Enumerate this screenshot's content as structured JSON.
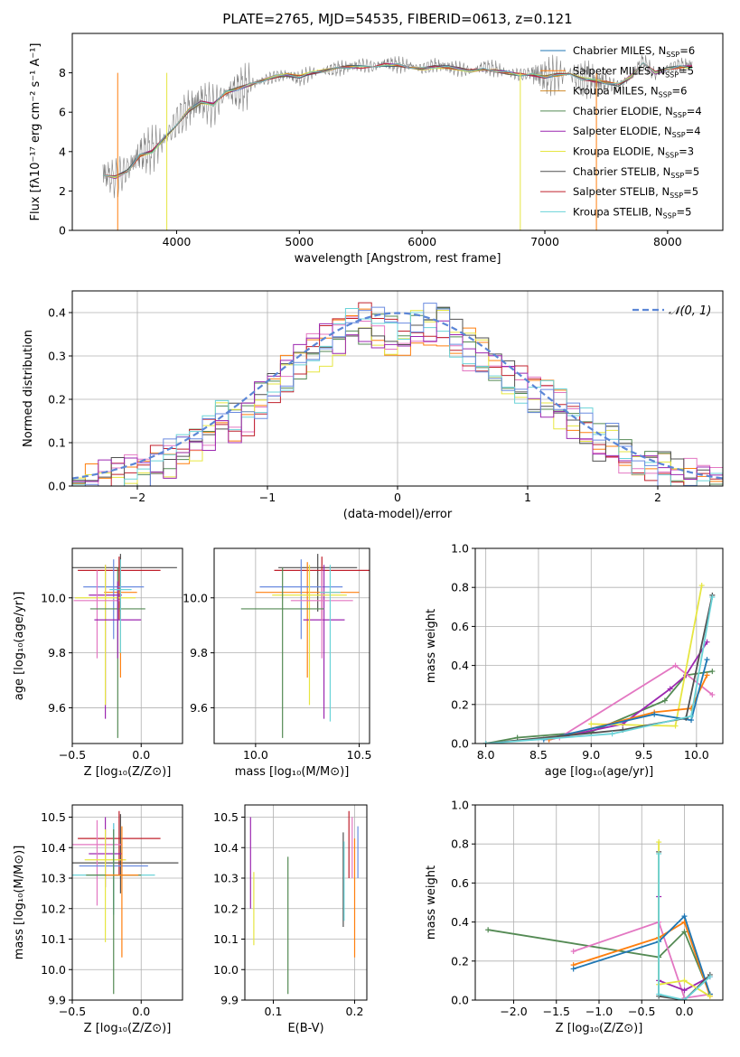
{
  "figure": {
    "title": "PLATE=2765, MJD=54535, FIBERID=0613, z=0.121"
  },
  "colors": {
    "series": [
      "#1f77b4",
      "#ff7f0e",
      "#d08b2b",
      "#548a54",
      "#9c27b0",
      "#e6e641",
      "#505050",
      "#c0202c",
      "#6ad3d8",
      "#e377c2",
      "#6a8be0",
      "#b9b9b9"
    ],
    "gaussian": "#5b86d6"
  },
  "chart_data": [
    {
      "id": "spectrum",
      "type": "line",
      "xlabel": "wavelength [Angstrom, rest frame]",
      "ylabel": "Flux [fλ10⁻¹⁷ erg cm⁻² s⁻¹ A⁻¹]",
      "xlim": [
        3150,
        8450
      ],
      "ylim": [
        0,
        10
      ],
      "xticks": [
        4000,
        5000,
        6000,
        7000,
        8000
      ],
      "yticks": [
        0,
        2,
        4,
        6,
        8
      ],
      "grid": false,
      "legend": "right",
      "x": [
        3400,
        3500,
        3600,
        3700,
        3800,
        3900,
        4000,
        4100,
        4200,
        4300,
        4400,
        4500,
        4600,
        4700,
        4800,
        4900,
        5000,
        5100,
        5200,
        5300,
        5400,
        5500,
        5600,
        5700,
        5800,
        5900,
        6000,
        6100,
        6200,
        6300,
        6400,
        6500,
        6600,
        6700,
        6800,
        6900,
        7000,
        7100,
        7200,
        7300,
        7400,
        7500,
        7600,
        7700,
        7800,
        7900,
        8000,
        8100,
        8200
      ],
      "observed": [
        2.9,
        2.6,
        3.1,
        3.9,
        4.1,
        4.6,
        5.5,
        6.2,
        6.6,
        6.3,
        7.0,
        7.1,
        7.4,
        7.6,
        7.8,
        7.9,
        7.7,
        8.0,
        8.1,
        8.2,
        8.3,
        8.4,
        8.3,
        8.5,
        8.4,
        8.4,
        8.2,
        8.4,
        8.3,
        8.2,
        8.1,
        8.3,
        8.2,
        8.0,
        7.9,
        8.0,
        7.8,
        7.9,
        8.0,
        7.7,
        7.6,
        7.5,
        7.3,
        7.8,
        8.6,
        7.9,
        8.2,
        8.4,
        8.4
      ],
      "model": [
        2.8,
        2.7,
        3.0,
        3.8,
        4.0,
        4.7,
        5.4,
        6.1,
        6.5,
        6.4,
        7.0,
        7.2,
        7.4,
        7.6,
        7.8,
        7.9,
        7.8,
        8.0,
        8.1,
        8.2,
        8.3,
        8.3,
        8.3,
        8.4,
        8.4,
        8.3,
        8.2,
        8.3,
        8.3,
        8.2,
        8.1,
        8.2,
        8.1,
        8.0,
        7.9,
        7.9,
        7.8,
        7.9,
        7.9,
        7.7,
        7.6,
        7.5,
        7.4,
        7.8,
        8.5,
        8.0,
        8.2,
        8.3,
        8.3
      ],
      "legend_entries": [
        {
          "name": "Chabrier MILES, N_SSP=6",
          "base": "Chabrier MILES, N",
          "sub": "SSP",
          "tail": "=6",
          "color": "#1f77b4"
        },
        {
          "name": "Salpeter MILES, N_SSP=5",
          "base": "Salpeter MILES, N",
          "sub": "SSP",
          "tail": "=5",
          "color": "#ff7f0e"
        },
        {
          "name": "Kroupa MILES, N_SSP=6",
          "base": "Kroupa MILES, N",
          "sub": "SSP",
          "tail": "=6",
          "color": "#d08b2b"
        },
        {
          "name": "Chabrier ELODIE, N_SSP=4",
          "base": "Chabrier ELODIE, N",
          "sub": "SSP",
          "tail": "=4",
          "color": "#548a54"
        },
        {
          "name": "Salpeter ELODIE, N_SSP=4",
          "base": "Salpeter ELODIE, N",
          "sub": "SSP",
          "tail": "=4",
          "color": "#9c27b0"
        },
        {
          "name": "Kroupa ELODIE, N_SSP=3",
          "base": "Kroupa ELODIE, N",
          "sub": "SSP",
          "tail": "=3",
          "color": "#e6e641"
        },
        {
          "name": "Chabrier STELIB, N_SSP=5",
          "base": "Chabrier STELIB, N",
          "sub": "SSP",
          "tail": "=5",
          "color": "#505050"
        },
        {
          "name": "Salpeter STELIB, N_SSP=5",
          "base": "Salpeter STELIB, N",
          "sub": "SSP",
          "tail": "=5",
          "color": "#c0202c"
        },
        {
          "name": "Kroupa STELIB, N_SSP=5",
          "base": "Kroupa STELIB, N",
          "sub": "SSP",
          "tail": "=5",
          "color": "#6ad3d8"
        }
      ]
    },
    {
      "id": "residuals",
      "type": "line",
      "xlabel": "(data-model)/error",
      "ylabel": "Normed distribution",
      "xlim": [
        -2.5,
        2.5
      ],
      "ylim": [
        0,
        0.45
      ],
      "xticks": [
        -2,
        -1,
        0,
        1,
        2
      ],
      "yticks": [
        0.0,
        0.1,
        0.2,
        0.3,
        0.4
      ],
      "grid": true,
      "legend": "top-right",
      "gaussian_label": "𝒩(0, 1)",
      "bin_edges": [
        -2.5,
        -2.4,
        -2.3,
        -2.2,
        -2.1,
        -2.0,
        -1.9,
        -1.8,
        -1.7,
        -1.6,
        -1.5,
        -1.4,
        -1.3,
        -1.2,
        -1.1,
        -1.0,
        -0.9,
        -0.8,
        -0.7,
        -0.6,
        -0.5,
        -0.4,
        -0.3,
        -0.2,
        -0.1,
        0.0,
        0.1,
        0.2,
        0.3,
        0.4,
        0.5,
        0.6,
        0.7,
        0.8,
        0.9,
        1.0,
        1.1,
        1.2,
        1.3,
        1.4,
        1.5,
        1.6,
        1.7,
        1.8,
        1.9,
        2.0,
        2.1,
        2.2,
        2.3,
        2.4,
        2.5
      ],
      "histogram": [
        0.03,
        0.03,
        0.04,
        0.05,
        0.05,
        0.06,
        0.07,
        0.09,
        0.11,
        0.13,
        0.15,
        0.18,
        0.17,
        0.19,
        0.22,
        0.25,
        0.28,
        0.31,
        0.33,
        0.35,
        0.37,
        0.39,
        0.4,
        0.39,
        0.37,
        0.36,
        0.38,
        0.4,
        0.39,
        0.36,
        0.34,
        0.32,
        0.3,
        0.28,
        0.26,
        0.24,
        0.22,
        0.2,
        0.18,
        0.16,
        0.13,
        0.12,
        0.1,
        0.09,
        0.08,
        0.06,
        0.05,
        0.04,
        0.04,
        0.03
      ]
    },
    {
      "id": "age-vs-Z",
      "type": "scatter",
      "xlabel": "Z [log₁₀(Z/Z⊙)]",
      "ylabel": "age  [log₁₀(age/yr)]",
      "xlim": [
        -0.5,
        0.3
      ],
      "ylim": [
        9.47,
        10.18
      ],
      "xticks": [
        -0.5,
        0.0
      ],
      "yticks": [
        9.6,
        9.8,
        10.0
      ],
      "xticklabels": [
        "−0.5",
        "0.0"
      ],
      "grid": true,
      "points": [
        {
          "x": -0.15,
          "y": 10.11,
          "xerr": 0.41,
          "ylo": 9.95,
          "yhi": 10.16,
          "color": "#505050"
        },
        {
          "x": -0.16,
          "y": 10.1,
          "xerr": 0.3,
          "ylo": 9.92,
          "yhi": 10.15,
          "color": "#c0202c"
        },
        {
          "x": -0.15,
          "y": 10.02,
          "xerr": 0.12,
          "ylo": 9.71,
          "yhi": 10.13,
          "color": "#ff7f0e"
        },
        {
          "x": -0.2,
          "y": 10.04,
          "xerr": 0.22,
          "ylo": 9.85,
          "yhi": 10.14,
          "color": "#6a8be0"
        },
        {
          "x": -0.26,
          "y": 10.01,
          "xerr": 0.12,
          "ylo": 9.56,
          "yhi": 10.12,
          "color": "#9c27b0"
        },
        {
          "x": -0.26,
          "y": 10.0,
          "xerr": 0.22,
          "ylo": 9.61,
          "yhi": 10.12,
          "color": "#e6e641"
        },
        {
          "x": -0.32,
          "y": 9.99,
          "xerr": 0.17,
          "ylo": 9.78,
          "yhi": 10.1,
          "color": "#e377c2"
        },
        {
          "x": -0.17,
          "y": 9.96,
          "xerr": 0.2,
          "ylo": 9.49,
          "yhi": 10.11,
          "color": "#548a54"
        },
        {
          "x": -0.17,
          "y": 9.92,
          "xerr": 0.17,
          "ylo": 9.78,
          "yhi": 10.06,
          "color": "#9c27b0"
        },
        {
          "x": -0.15,
          "y": 10.03,
          "xerr": 0.08,
          "ylo": 9.8,
          "yhi": 10.14,
          "color": "#6ad3d8"
        }
      ]
    },
    {
      "id": "age-vs-mass",
      "type": "scatter",
      "xlabel": "mass [log₁₀(M/M⊙)]",
      "ylabel": "",
      "xlim": [
        9.8,
        10.55
      ],
      "ylim": [
        9.47,
        10.18
      ],
      "xticks": [
        10.0,
        10.5
      ],
      "yticks": [
        9.6,
        9.8,
        10.0
      ],
      "grid": true,
      "points": [
        {
          "x": 10.3,
          "y": 10.11,
          "xerr": 0.19,
          "ylo": 9.95,
          "yhi": 10.16,
          "color": "#505050"
        },
        {
          "x": 10.32,
          "y": 10.1,
          "xerr": 0.23,
          "ylo": 9.92,
          "yhi": 10.15,
          "color": "#c0202c"
        },
        {
          "x": 10.25,
          "y": 10.02,
          "xerr": 0.25,
          "ylo": 9.71,
          "yhi": 10.13,
          "color": "#ff7f0e"
        },
        {
          "x": 10.22,
          "y": 10.04,
          "xerr": 0.2,
          "ylo": 9.85,
          "yhi": 10.14,
          "color": "#6a8be0"
        },
        {
          "x": 10.33,
          "y": 9.92,
          "xerr": 0.1,
          "ylo": 9.56,
          "yhi": 10.12,
          "color": "#9c27b0"
        },
        {
          "x": 10.26,
          "y": 10.01,
          "xerr": 0.18,
          "ylo": 9.61,
          "yhi": 10.12,
          "color": "#e6e641"
        },
        {
          "x": 10.32,
          "y": 9.99,
          "xerr": 0.15,
          "ylo": 9.78,
          "yhi": 10.1,
          "color": "#e377c2"
        },
        {
          "x": 10.13,
          "y": 9.96,
          "xerr": 0.2,
          "ylo": 9.49,
          "yhi": 10.11,
          "color": "#548a54"
        },
        {
          "x": 10.36,
          "y": 10.02,
          "xerr": 0.05,
          "ylo": 9.55,
          "yhi": 10.12,
          "color": "#6ad3d8"
        }
      ]
    },
    {
      "id": "mass-weight-vs-age",
      "type": "line",
      "xlabel": "age  [log₁₀(age/yr)]",
      "ylabel": "mass weight",
      "xlim": [
        7.9,
        10.25
      ],
      "ylim": [
        0,
        1.0
      ],
      "xticks": [
        8.0,
        8.5,
        9.0,
        9.5,
        10.0
      ],
      "yticks": [
        0.0,
        0.2,
        0.4,
        0.6,
        0.8,
        1.0
      ],
      "grid": true,
      "series": [
        {
          "color": "#548a54",
          "x": [
            8.0,
            8.3,
            9.0,
            9.7,
            9.9,
            10.15
          ],
          "y": [
            0.0,
            0.03,
            0.06,
            0.22,
            0.35,
            0.37
          ]
        },
        {
          "color": "#9c27b0",
          "x": [
            8.6,
            9.3,
            9.75,
            9.9,
            10.1
          ],
          "y": [
            0.02,
            0.1,
            0.28,
            0.35,
            0.52
          ]
        },
        {
          "color": "#e377c2",
          "x": [
            8.7,
            9.8,
            10.15
          ],
          "y": [
            0.03,
            0.4,
            0.25
          ]
        },
        {
          "color": "#e6e641",
          "x": [
            9.0,
            9.8,
            10.05
          ],
          "y": [
            0.1,
            0.09,
            0.81
          ]
        },
        {
          "color": "#ff7f0e",
          "x": [
            8.6,
            9.6,
            9.95,
            10.1
          ],
          "y": [
            0.02,
            0.16,
            0.18,
            0.35
          ]
        },
        {
          "color": "#1f77b4",
          "x": [
            8.55,
            9.6,
            9.95,
            10.1
          ],
          "y": [
            0.02,
            0.15,
            0.12,
            0.43
          ]
        },
        {
          "color": "#505050",
          "x": [
            8.0,
            9.3,
            9.9,
            10.15
          ],
          "y": [
            0.0,
            0.07,
            0.13,
            0.76
          ]
        },
        {
          "color": "#6ad3d8",
          "x": [
            8.0,
            9.2,
            9.95,
            10.15
          ],
          "y": [
            0.0,
            0.05,
            0.14,
            0.75
          ]
        }
      ]
    },
    {
      "id": "mass-vs-Z",
      "type": "scatter",
      "xlabel": "Z [log₁₀(Z/Z⊙)]",
      "ylabel": "mass [log₁₀(M/M⊙)]",
      "xlim": [
        -0.5,
        0.3
      ],
      "ylim": [
        9.9,
        10.54
      ],
      "xticks": [
        -0.5,
        0.0
      ],
      "yticks": [
        9.9,
        10.0,
        10.1,
        10.2,
        10.3,
        10.4,
        10.5
      ],
      "xticklabels": [
        "−0.5",
        "0.0"
      ],
      "grid": true,
      "points": [
        {
          "x": -0.16,
          "y": 10.43,
          "xerr": 0.3,
          "ylo": 10.31,
          "yhi": 10.52,
          "color": "#c0202c"
        },
        {
          "x": -0.15,
          "y": 10.35,
          "xerr": 0.42,
          "ylo": 10.25,
          "yhi": 10.51,
          "color": "#505050"
        },
        {
          "x": -0.26,
          "y": 10.38,
          "xerr": 0.12,
          "ylo": 10.27,
          "yhi": 10.5,
          "color": "#9c27b0"
        },
        {
          "x": -0.32,
          "y": 10.41,
          "xerr": 0.18,
          "ylo": 10.21,
          "yhi": 10.49,
          "color": "#e377c2"
        },
        {
          "x": -0.2,
          "y": 10.34,
          "xerr": 0.25,
          "ylo": 10.2,
          "yhi": 10.48,
          "color": "#6a8be0"
        },
        {
          "x": -0.2,
          "y": 10.31,
          "xerr": 0.3,
          "ylo": 10.18,
          "yhi": 10.48,
          "color": "#6ad3d8"
        },
        {
          "x": -0.26,
          "y": 10.36,
          "xerr": 0.15,
          "ylo": 10.09,
          "yhi": 10.46,
          "color": "#e6e641"
        },
        {
          "x": -0.2,
          "y": 10.31,
          "xerr": 0.2,
          "ylo": 9.92,
          "yhi": 10.46,
          "color": "#548a54"
        },
        {
          "x": -0.14,
          "y": 10.31,
          "xerr": 0.12,
          "ylo": 10.04,
          "yhi": 10.47,
          "color": "#ff7f0e"
        }
      ]
    },
    {
      "id": "mass-vs-EBV",
      "type": "scatter",
      "xlabel": "E(B-V)",
      "ylabel": "",
      "xlim": [
        0.065,
        0.215
      ],
      "ylim": [
        9.9,
        10.54
      ],
      "xticks": [
        0.1,
        0.2
      ],
      "yticks": [
        9.9,
        10.0,
        10.1,
        10.2,
        10.3,
        10.4,
        10.5
      ],
      "grid": true,
      "points": [
        {
          "x": 0.072,
          "ylo": 10.2,
          "yhi": 10.5,
          "color": "#9c27b0"
        },
        {
          "x": 0.076,
          "ylo": 10.08,
          "yhi": 10.32,
          "color": "#e6e641"
        },
        {
          "x": 0.118,
          "ylo": 9.92,
          "yhi": 10.37,
          "color": "#548a54"
        },
        {
          "x": 0.186,
          "ylo": 10.14,
          "yhi": 10.45,
          "color": "#505050"
        },
        {
          "x": 0.187,
          "ylo": 10.16,
          "yhi": 10.42,
          "color": "#6ad3d8"
        },
        {
          "x": 0.193,
          "ylo": 10.3,
          "yhi": 10.52,
          "color": "#c0202c"
        },
        {
          "x": 0.197,
          "ylo": 10.3,
          "yhi": 10.5,
          "color": "#e377c2"
        },
        {
          "x": 0.2,
          "ylo": 10.04,
          "yhi": 10.43,
          "color": "#ff7f0e"
        },
        {
          "x": 0.204,
          "ylo": 10.3,
          "yhi": 10.47,
          "color": "#6a8be0"
        }
      ]
    },
    {
      "id": "mass-weight-vs-Z",
      "type": "line",
      "xlabel": "Z [log₁₀(Z/Z⊙)]",
      "ylabel": "mass weight",
      "xlim": [
        -2.45,
        0.45
      ],
      "ylim": [
        0,
        1.0
      ],
      "xticks": [
        -2.0,
        -1.5,
        -1.0,
        -0.5,
        0.0
      ],
      "yticks": [
        0.0,
        0.2,
        0.4,
        0.6,
        0.8,
        1.0
      ],
      "xticklabels": [
        "−2.0",
        "−1.5",
        "−1.0",
        "−0.5",
        "0.0"
      ],
      "grid": true,
      "series": [
        {
          "color": "#548a54",
          "x": [
            -2.3,
            -0.3,
            0.0,
            0.3
          ],
          "y": [
            0.36,
            0.22,
            0.35,
            0.03
          ]
        },
        {
          "color": "#e377c2",
          "x": [
            -1.3,
            -0.3,
            0.0,
            0.3
          ],
          "y": [
            0.25,
            0.4,
            0.01,
            0.03
          ]
        },
        {
          "color": "#ff7f0e",
          "x": [
            -1.3,
            -0.3,
            0.0,
            0.3
          ],
          "y": [
            0.18,
            0.32,
            0.4,
            0.02
          ]
        },
        {
          "color": "#1f77b4",
          "x": [
            -1.3,
            -0.3,
            0.0,
            0.3
          ],
          "y": [
            0.16,
            0.3,
            0.43,
            0.03
          ]
        },
        {
          "color": "#9c27b0",
          "x": [
            -0.3,
            -0.3,
            0.0,
            0.3
          ],
          "y": [
            0.53,
            0.1,
            0.05,
            0.12
          ]
        },
        {
          "color": "#505050",
          "x": [
            -0.3,
            -0.3,
            0.0,
            0.3
          ],
          "y": [
            0.76,
            0.02,
            0.0,
            0.13
          ]
        },
        {
          "color": "#e6e641",
          "x": [
            -0.3,
            -0.3,
            0.0,
            0.3
          ],
          "y": [
            0.81,
            0.08,
            0.1,
            0.02
          ]
        },
        {
          "color": "#6ad3d8",
          "x": [
            -0.3,
            -0.3,
            0.0,
            0.3
          ],
          "y": [
            0.75,
            0.03,
            0.0,
            0.12
          ]
        }
      ]
    }
  ]
}
